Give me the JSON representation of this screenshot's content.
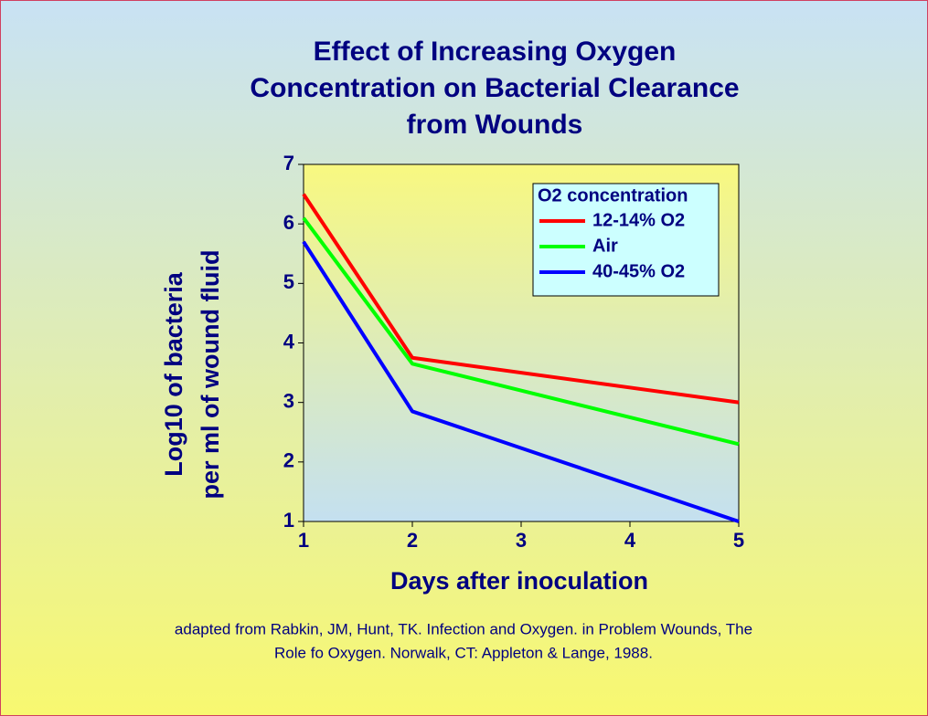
{
  "chart_data": {
    "type": "line",
    "title": [
      "Effect of Increasing Oxygen",
      "Concentration on Bacterial Clearance",
      "from Wounds"
    ],
    "x_label": "Days after inoculation",
    "y_label": [
      "Log10 of bacteria",
      "per ml of wound fluid"
    ],
    "legend_title": "O2 concentration",
    "legend_position": "upper right",
    "x": [
      1,
      2,
      5
    ],
    "series": [
      {
        "name": "12-14% O2",
        "color": "#ff0000",
        "values": [
          6.5,
          3.75,
          3.0
        ]
      },
      {
        "name": "Air",
        "color": "#00ff00",
        "values": [
          6.1,
          3.65,
          2.3
        ]
      },
      {
        "name": "40-45% O2",
        "color": "#0000ff",
        "values": [
          5.7,
          2.85,
          1.0
        ]
      }
    ],
    "xlim": [
      1,
      5
    ],
    "xticks": [
      1,
      2,
      3,
      4,
      5
    ],
    "ylim": [
      1,
      7
    ],
    "yticks": [
      1,
      2,
      3,
      4,
      5,
      6,
      7
    ],
    "footnote": [
      "adapted from Rabkin, JM, Hunt, TK.  Infection and Oxygen.    in Problem Wounds, The",
      "Role fo Oxygen. Norwalk, CT: Appleton & Lange, 1988."
    ]
  }
}
